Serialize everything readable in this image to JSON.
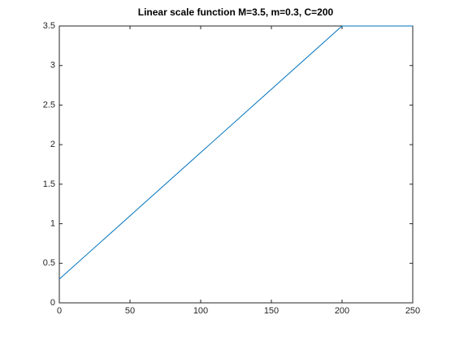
{
  "chart_data": {
    "type": "line",
    "title": "Linear scale function M=3.5, m=0.3, C=200",
    "x": [
      0,
      200,
      250
    ],
    "values": [
      0.3,
      3.5,
      3.5
    ],
    "color": "#0072bd",
    "xlim": [
      0,
      250
    ],
    "xticks": [
      0,
      50,
      100,
      150,
      200,
      250
    ],
    "ylim": [
      0,
      3.5
    ],
    "yticks": [
      0,
      0.5,
      1,
      1.5,
      2,
      2.5,
      3,
      3.5
    ],
    "grid": false
  }
}
